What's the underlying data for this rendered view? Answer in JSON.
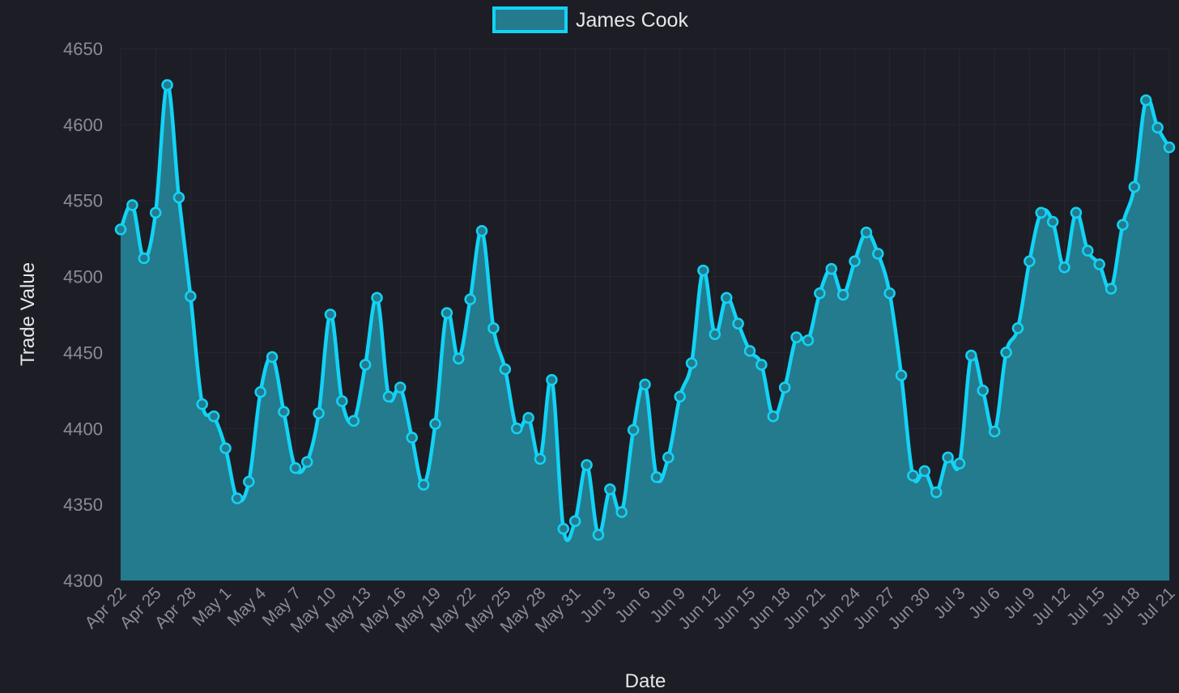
{
  "colors": {
    "background": "#1d1d26",
    "series_line": "#12d3f5",
    "series_fill": "#247b8e",
    "grid": "#272732",
    "tick_text": "#8b8b93",
    "label_text": "#e6e6ea"
  },
  "chart_data": {
    "type": "area",
    "x": [
      "Apr 22",
      "Apr 23",
      "Apr 24",
      "Apr 25",
      "Apr 26",
      "Apr 27",
      "Apr 28",
      "Apr 29",
      "Apr 30",
      "May 1",
      "May 2",
      "May 3",
      "May 4",
      "May 5",
      "May 6",
      "May 7",
      "May 8",
      "May 9",
      "May 10",
      "May 11",
      "May 12",
      "May 13",
      "May 14",
      "May 15",
      "May 16",
      "May 17",
      "May 18",
      "May 19",
      "May 20",
      "May 21",
      "May 22",
      "May 23",
      "May 24",
      "May 25",
      "May 26",
      "May 27",
      "May 28",
      "May 29",
      "May 30",
      "May 31",
      "Jun 1",
      "Jun 2",
      "Jun 3",
      "Jun 4",
      "Jun 5",
      "Jun 6",
      "Jun 7",
      "Jun 8",
      "Jun 9",
      "Jun 10",
      "Jun 11",
      "Jun 12",
      "Jun 13",
      "Jun 14",
      "Jun 15",
      "Jun 16",
      "Jun 17",
      "Jun 18",
      "Jun 19",
      "Jun 20",
      "Jun 21",
      "Jun 22",
      "Jun 23",
      "Jun 24",
      "Jun 25",
      "Jun 26",
      "Jun 27",
      "Jun 28",
      "Jun 29",
      "Jun 30",
      "Jul 1",
      "Jul 2",
      "Jul 3",
      "Jul 4",
      "Jul 5",
      "Jul 6",
      "Jul 7",
      "Jul 8",
      "Jul 9",
      "Jul 10",
      "Jul 11",
      "Jul 12",
      "Jul 13",
      "Jul 14",
      "Jul 15",
      "Jul 16",
      "Jul 17",
      "Jul 18",
      "Jul 19",
      "Jul 20",
      "Jul 21"
    ],
    "series": [
      {
        "name": "James Cook",
        "values": [
          4531,
          4547,
          4512,
          4542,
          4626,
          4552,
          4487,
          4416,
          4408,
          4387,
          4354,
          4365,
          4424,
          4447,
          4411,
          4374,
          4378,
          4410,
          4475,
          4418,
          4405,
          4442,
          4486,
          4421,
          4427,
          4394,
          4363,
          4403,
          4476,
          4446,
          4485,
          4530,
          4466,
          4439,
          4400,
          4407,
          4380,
          4432,
          4334,
          4339,
          4376,
          4330,
          4360,
          4345,
          4399,
          4429,
          4368,
          4381,
          4421,
          4443,
          4504,
          4462,
          4486,
          4469,
          4451,
          4442,
          4408,
          4427,
          4460,
          4458,
          4489,
          4505,
          4488,
          4510,
          4529,
          4515,
          4489,
          4435,
          4369,
          4372,
          4358,
          4381,
          4377,
          4448,
          4425,
          4398,
          4450,
          4466,
          4510,
          4542,
          4536,
          4506,
          4542,
          4517,
          4508,
          4492,
          4534,
          4559,
          4616,
          4598,
          4585
        ]
      }
    ],
    "tick_labels": [
      "Apr 22",
      "Apr 25",
      "Apr 28",
      "May 1",
      "May 4",
      "May 7",
      "May 10",
      "May 13",
      "May 16",
      "May 19",
      "May 22",
      "May 25",
      "May 28",
      "May 31",
      "Jun 3",
      "Jun 6",
      "Jun 9",
      "Jun 12",
      "Jun 15",
      "Jun 18",
      "Jun 21",
      "Jun 24",
      "Jun 27",
      "Jun 30",
      "Jul 3",
      "Jul 6",
      "Jul 9",
      "Jul 12",
      "Jul 15",
      "Jul 18",
      "Jul 21"
    ],
    "xlabel": "Date",
    "ylabel": "Trade Value",
    "ylim": [
      4300,
      4650
    ],
    "yticks": [
      4300,
      4350,
      4400,
      4450,
      4500,
      4550,
      4600,
      4650
    ],
    "grid": true,
    "legend_position": "top-center"
  }
}
